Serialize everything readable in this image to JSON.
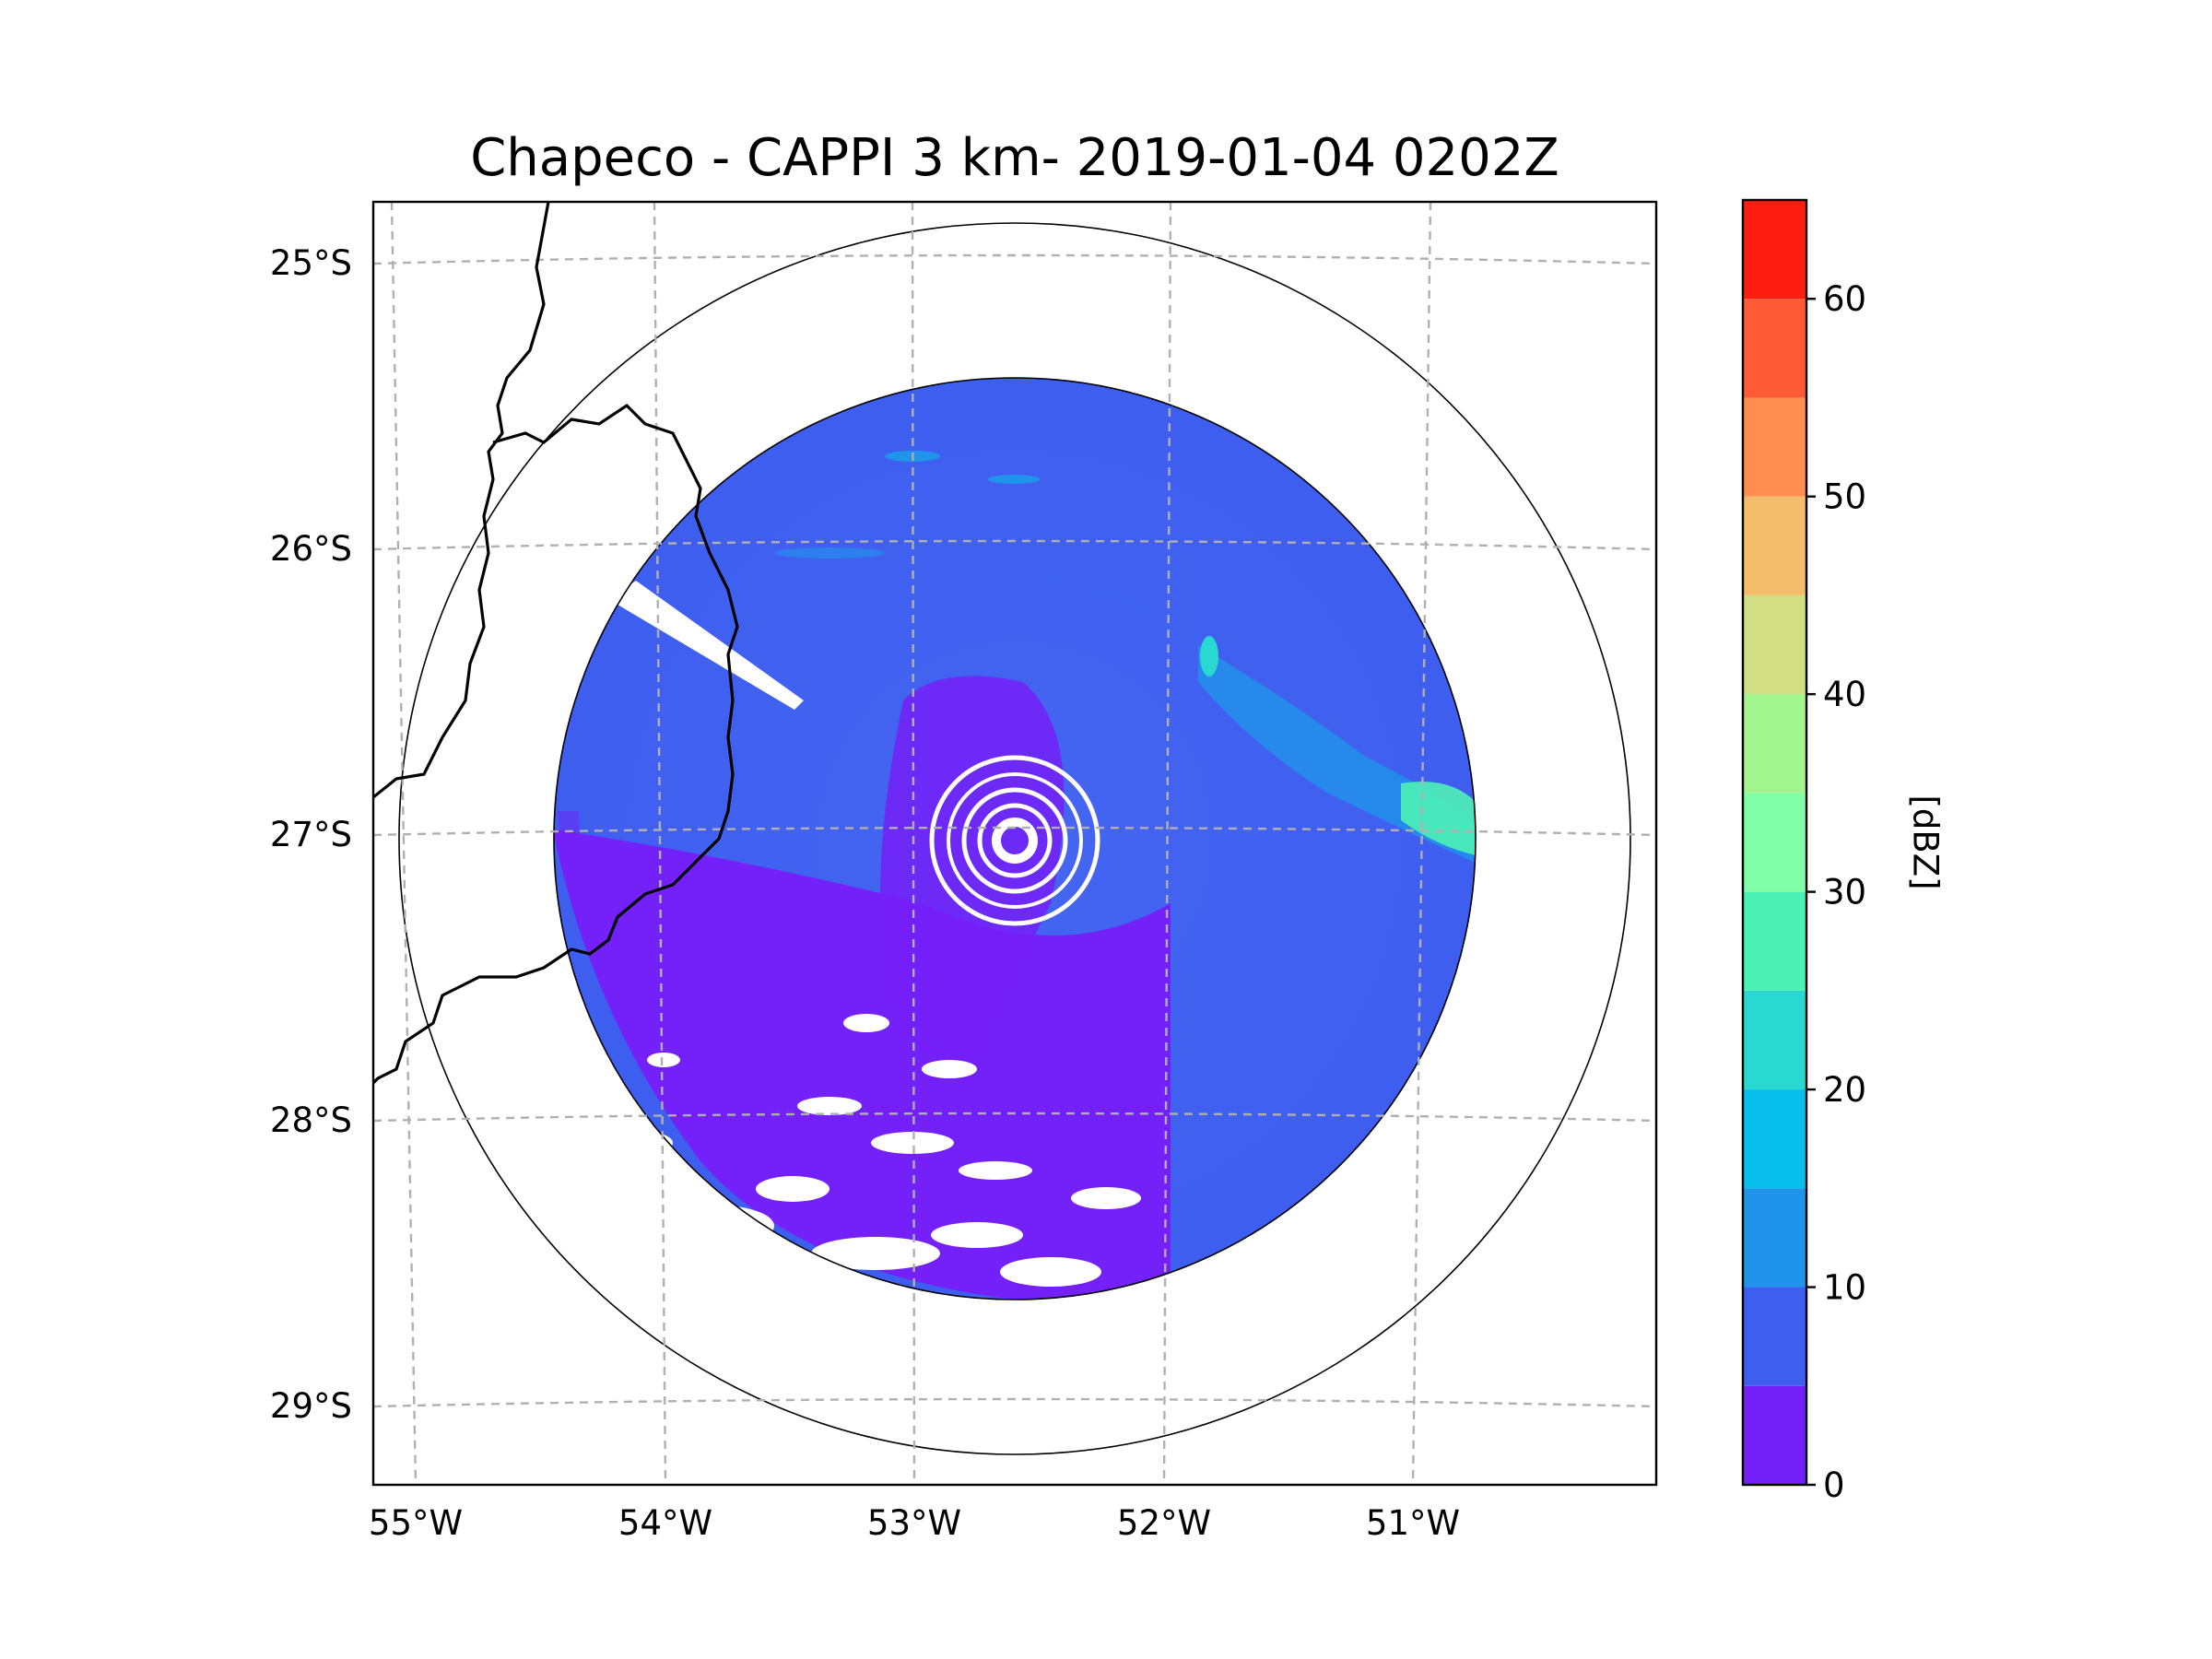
{
  "chart_data": {
    "type": "radar-map",
    "title": "Chapeco - CAPPI 3 km- 2019-01-04 0202Z",
    "radar_site": "Chapeco",
    "product": "CAPPI 3 km",
    "datetime": "2019-01-04 0202Z",
    "center": {
      "lon": -52.6,
      "lat": -27.0
    },
    "lon_range": [
      -55.2,
      -50.1
    ],
    "lat_range": [
      -29.3,
      -24.8
    ],
    "x_ticks": [
      {
        "value": -55,
        "label": "55°W"
      },
      {
        "value": -54,
        "label": "54°W"
      },
      {
        "value": -53,
        "label": "53°W"
      },
      {
        "value": -52,
        "label": "52°W"
      },
      {
        "value": -51,
        "label": "51°W"
      }
    ],
    "y_ticks": [
      {
        "value": -25,
        "label": "25°S"
      },
      {
        "value": -26,
        "label": "26°S"
      },
      {
        "value": -27,
        "label": "27°S"
      },
      {
        "value": -28,
        "label": "28°S"
      },
      {
        "value": -29,
        "label": "29°S"
      }
    ],
    "gridlines": true,
    "range_rings_km": [
      180,
      250
    ],
    "colorbar": {
      "label": "[dBZ]",
      "min": 0,
      "max": 65,
      "step": 5,
      "tick_values": [
        0,
        10,
        20,
        30,
        40,
        50,
        60
      ],
      "tick_labels": [
        "0",
        "10",
        "20",
        "30",
        "40",
        "50",
        "60"
      ],
      "colors": [
        "#7420f8",
        "#3e5ef0",
        "#1f94ea",
        "#08beeb",
        "#2ad8d2",
        "#4cf1b6",
        "#80fea8",
        "#a2f58c",
        "#d2de84",
        "#f3bd6c",
        "#ff8e50",
        "#fe5a35",
        "#ff1c10"
      ]
    },
    "features": {
      "reflectivity_background": {
        "dbz": [
          0,
          10
        ],
        "description": "widespread weak echo"
      },
      "echo_band_east": {
        "dbz": [
          15,
          30
        ],
        "location": "east-northeast of radar"
      },
      "beam_blockage": {
        "azimuth_deg": 300
      }
    }
  }
}
